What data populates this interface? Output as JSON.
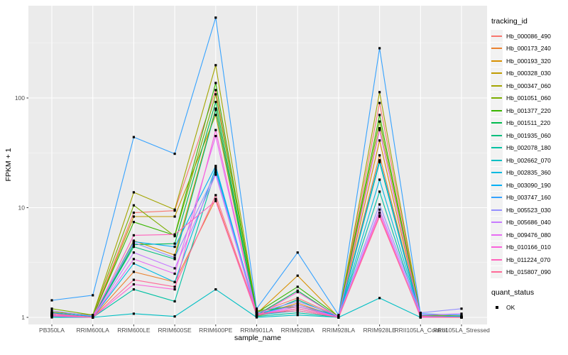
{
  "chart_data": {
    "type": "line",
    "xlabel": "sample_name",
    "ylabel": "FPKM + 1",
    "y_scale": "log10",
    "y_ticks": [
      1,
      10,
      100
    ],
    "y_minor_ticks": [
      3.162,
      31.62,
      316.2
    ],
    "ylim": [
      0.87,
      700
    ],
    "grid": true,
    "legend_position": "right",
    "point_marker": "black-square",
    "categories": [
      "PB350LA",
      "RRIM600LA",
      "RRIM600LE",
      "RRIM600SE",
      "RRIM600PE",
      "RRIM901LA",
      "RRIM928BA",
      "RRIM928LA",
      "RRIM928LE",
      "RRII105LA_Control",
      "RRII105LA_Stressed"
    ],
    "series": [
      {
        "name": "Hb_000086_490",
        "color": "#F8766D",
        "values": [
          1.1,
          1.02,
          9.0,
          9.4,
          118,
          1.1,
          1.5,
          1.02,
          90,
          1.05,
          1.02
        ]
      },
      {
        "name": "Hb_000173_240",
        "color": "#EA8331",
        "values": [
          1.05,
          1.0,
          2.6,
          2.1,
          12,
          1.05,
          1.35,
          1.0,
          30,
          1.02,
          1.0
        ]
      },
      {
        "name": "Hb_000193_320",
        "color": "#D89000",
        "values": [
          1.08,
          1.0,
          5.0,
          3.7,
          80,
          1.08,
          2.4,
          1.0,
          41,
          1.02,
          1.0
        ]
      },
      {
        "name": "Hb_000328_030",
        "color": "#C09B00",
        "values": [
          1.03,
          1.0,
          8.3,
          8.3,
          70,
          1.03,
          1.2,
          1.0,
          53,
          1.0,
          1.0
        ]
      },
      {
        "name": "Hb_000347_060",
        "color": "#A3A500",
        "values": [
          1.12,
          1.05,
          13.8,
          9.6,
          199,
          1.12,
          1.3,
          1.03,
          113,
          1.05,
          1.02
        ]
      },
      {
        "name": "Hb_001051_060",
        "color": "#7CAE00",
        "values": [
          1.2,
          1.05,
          10.5,
          5.5,
          108,
          1.15,
          1.25,
          1.02,
          61,
          1.05,
          1.03
        ]
      },
      {
        "name": "Hb_001377_220",
        "color": "#39B600",
        "values": [
          1.1,
          1.02,
          7.4,
          5.6,
          137,
          1.1,
          1.9,
          1.02,
          70,
          1.03,
          1.0
        ]
      },
      {
        "name": "Hb_001511_220",
        "color": "#00BB4E",
        "values": [
          1.05,
          1.0,
          4.6,
          4.7,
          92,
          1.05,
          1.75,
          1.0,
          27,
          1.02,
          1.0
        ]
      },
      {
        "name": "Hb_001935_060",
        "color": "#00BF7D",
        "values": [
          1.03,
          1.0,
          4.4,
          3.4,
          78,
          1.03,
          1.45,
          1.0,
          26,
          1.0,
          1.0
        ]
      },
      {
        "name": "Hb_002078_180",
        "color": "#00C1A3",
        "values": [
          1.02,
          1.0,
          1.8,
          1.4,
          22,
          1.02,
          1.1,
          1.0,
          14,
          1.0,
          1.0
        ]
      },
      {
        "name": "Hb_002662_070",
        "color": "#00BFC4",
        "values": [
          1.0,
          1.0,
          1.08,
          1.02,
          1.8,
          1.0,
          1.05,
          1.0,
          1.5,
          1.0,
          1.0
        ]
      },
      {
        "name": "Hb_002835_360",
        "color": "#00BAE0",
        "values": [
          1.05,
          1.0,
          3.1,
          2.1,
          23,
          1.05,
          1.15,
          1.0,
          18,
          1.02,
          1.0
        ]
      },
      {
        "name": "Hb_003090_190",
        "color": "#00B0F6",
        "values": [
          1.1,
          1.02,
          4.9,
          4.4,
          24,
          1.08,
          1.3,
          1.02,
          27,
          1.03,
          1.02
        ]
      },
      {
        "name": "Hb_003747_160",
        "color": "#35A2FF",
        "values": [
          1.43,
          1.59,
          44,
          31,
          540,
          1.2,
          3.9,
          1.05,
          284,
          1.08,
          1.05
        ]
      },
      {
        "name": "Hb_005523_030",
        "color": "#9590FF",
        "values": [
          1.15,
          1.03,
          4.8,
          3.5,
          21,
          1.1,
          1.4,
          1.03,
          10.7,
          1.1,
          1.2
        ]
      },
      {
        "name": "Hb_005686_040",
        "color": "#C77CFF",
        "values": [
          1.08,
          1.0,
          3.9,
          2.8,
          20,
          1.05,
          1.3,
          1.0,
          9.6,
          1.05,
          1.08
        ]
      },
      {
        "name": "Hb_009476_080",
        "color": "#E76BF3",
        "values": [
          1.05,
          1.0,
          3.4,
          2.5,
          45,
          1.05,
          1.25,
          1.0,
          51,
          1.02,
          1.0
        ]
      },
      {
        "name": "Hb_010166_010",
        "color": "#FA62DB",
        "values": [
          1.03,
          1.0,
          2.0,
          1.8,
          51,
          1.03,
          1.7,
          1.0,
          9.0,
          1.0,
          1.0
        ]
      },
      {
        "name": "Hb_011224_070",
        "color": "#FF62BC",
        "values": [
          1.05,
          1.0,
          5.6,
          5.7,
          11.5,
          1.05,
          1.2,
          1.0,
          8.5,
          1.02,
          1.0
        ]
      },
      {
        "name": "Hb_015807_090",
        "color": "#FF6A98",
        "values": [
          1.08,
          1.0,
          2.2,
          1.9,
          13,
          1.08,
          1.15,
          1.0,
          8.3,
          1.02,
          1.0
        ]
      }
    ]
  },
  "legend": {
    "tracking_title": "tracking_id",
    "quant_title": "quant_status",
    "quant_items": [
      {
        "label": "OK"
      }
    ]
  },
  "colors": {
    "figure_bg": "#FFFFFF",
    "panel_bg": "#EBEBEB",
    "grid_major": "#FFFFFF",
    "grid_minor": "#F5F5F5",
    "tick_label": "#4D4D4D",
    "axis_title": "#000000",
    "point": "#000000",
    "legend_key_bg": "#F2F2F2"
  }
}
